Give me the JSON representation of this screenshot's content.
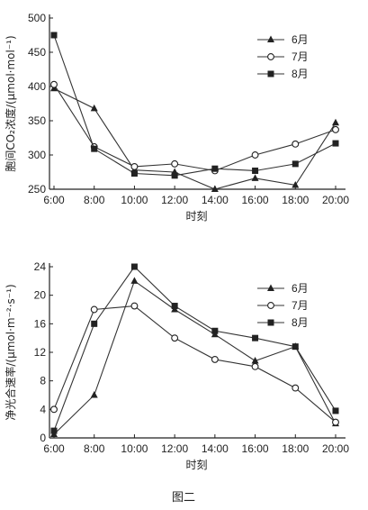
{
  "chart_data": [
    {
      "type": "line",
      "categories": [
        "6:00",
        "8:00",
        "10:00",
        "12:00",
        "14:00",
        "16:00",
        "18:00",
        "20:00"
      ],
      "series": [
        {
          "name": "6月",
          "marker": "triangle",
          "values": [
            397,
            368,
            278,
            275,
            250,
            266,
            256,
            347
          ]
        },
        {
          "name": "7月",
          "marker": "circle",
          "values": [
            403,
            312,
            283,
            287,
            277,
            300,
            316,
            337
          ]
        },
        {
          "name": "8月",
          "marker": "square",
          "values": [
            475,
            309,
            273,
            270,
            280,
            277,
            287,
            317
          ]
        }
      ],
      "ylabel": "胞间CO₂浓度/(μmol·mol⁻¹)",
      "xlabel": "时刻",
      "ylim": [
        250,
        500
      ],
      "yticks": [
        250,
        300,
        350,
        400,
        450,
        500
      ],
      "grid": false,
      "legend": "top-right"
    },
    {
      "type": "line",
      "categories": [
        "6:00",
        "8:00",
        "10:00",
        "12:00",
        "14:00",
        "16:00",
        "18:00",
        "20:00"
      ],
      "series": [
        {
          "name": "6月",
          "marker": "triangle",
          "values": [
            0.5,
            6,
            22,
            18,
            14.5,
            10.8,
            12.8,
            2
          ]
        },
        {
          "name": "7月",
          "marker": "circle",
          "values": [
            4,
            18,
            18.5,
            14,
            11,
            10,
            7,
            2.2
          ]
        },
        {
          "name": "8月",
          "marker": "square",
          "values": [
            1,
            16,
            24,
            18.5,
            15,
            14,
            12.8,
            3.8
          ]
        }
      ],
      "ylabel": "净光合速率/(μmol·m⁻²·s⁻¹)",
      "xlabel": "时刻",
      "ylim": [
        0,
        24
      ],
      "yticks": [
        0,
        4,
        8,
        12,
        16,
        20,
        24
      ],
      "grid": false,
      "legend": "top-right"
    }
  ],
  "figure_caption": "图二"
}
